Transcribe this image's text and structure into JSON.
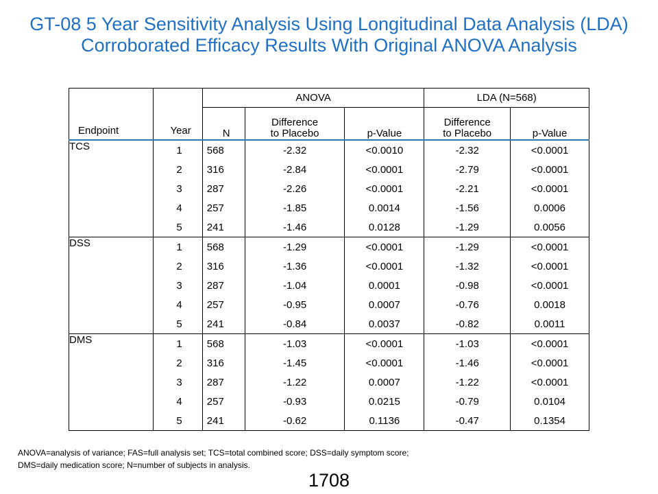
{
  "title": "GT-08 5 Year Sensitivity Analysis Using Longitudinal Data Analysis (LDA) Corroborated Efficacy Results With Original ANOVA Analysis",
  "headers": {
    "anova": "ANOVA",
    "lda": "LDA  (N=568)",
    "endpoint": "Endpoint",
    "year": "Year",
    "n": "N",
    "diff_line1": "Difference",
    "diff_line2": "to Placebo",
    "pvalue": "p-Value"
  },
  "groups": [
    {
      "endpoint": "TCS",
      "rows": [
        {
          "year": "1",
          "n": "568",
          "anova_diff": "-2.32",
          "anova_p": "<0.0010",
          "lda_diff": "-2.32",
          "lda_p": "<0.0001"
        },
        {
          "year": "2",
          "n": "316",
          "anova_diff": "-2.84",
          "anova_p": "<0.0001",
          "lda_diff": "-2.79",
          "lda_p": "<0.0001"
        },
        {
          "year": "3",
          "n": "287",
          "anova_diff": "-2.26",
          "anova_p": "<0.0001",
          "lda_diff": "-2.21",
          "lda_p": "<0.0001"
        },
        {
          "year": "4",
          "n": "257",
          "anova_diff": "-1.85",
          "anova_p": "0.0014",
          "lda_diff": "-1.56",
          "lda_p": "0.0006"
        },
        {
          "year": "5",
          "n": "241",
          "anova_diff": "-1.46",
          "anova_p": "0.0128",
          "lda_diff": "-1.29",
          "lda_p": "0.0056"
        }
      ]
    },
    {
      "endpoint": "DSS",
      "rows": [
        {
          "year": "1",
          "n": "568",
          "anova_diff": "-1.29",
          "anova_p": "<0.0001",
          "lda_diff": "-1.29",
          "lda_p": "<0.0001"
        },
        {
          "year": "2",
          "n": "316",
          "anova_diff": "-1.36",
          "anova_p": "<0.0001",
          "lda_diff": "-1.32",
          "lda_p": "<0.0001"
        },
        {
          "year": "3",
          "n": "287",
          "anova_diff": "-1.04",
          "anova_p": "0.0001",
          "lda_diff": "-0.98",
          "lda_p": "<0.0001"
        },
        {
          "year": "4",
          "n": "257",
          "anova_diff": "-0.95",
          "anova_p": "0.0007",
          "lda_diff": "-0.76",
          "lda_p": "0.0018"
        },
        {
          "year": "5",
          "n": "241",
          "anova_diff": "-0.84",
          "anova_p": "0.0037",
          "lda_diff": "-0.82",
          "lda_p": "0.0011"
        }
      ]
    },
    {
      "endpoint": "DMS",
      "rows": [
        {
          "year": "1",
          "n": "568",
          "anova_diff": "-1.03",
          "anova_p": "<0.0001",
          "lda_diff": "-1.03",
          "lda_p": "<0.0001"
        },
        {
          "year": "2",
          "n": "316",
          "anova_diff": "-1.45",
          "anova_p": "<0.0001",
          "lda_diff": "-1.46",
          "lda_p": "<0.0001"
        },
        {
          "year": "3",
          "n": "287",
          "anova_diff": "-1.22",
          "anova_p": "0.0007",
          "lda_diff": "-1.22",
          "lda_p": "<0.0001"
        },
        {
          "year": "4",
          "n": "257",
          "anova_diff": "-0.93",
          "anova_p": "0.0215",
          "lda_diff": "-0.79",
          "lda_p": "0.0104"
        },
        {
          "year": "5",
          "n": "241",
          "anova_diff": "-0.62",
          "anova_p": "0.1136",
          "lda_diff": "-0.47",
          "lda_p": "0.1354"
        }
      ]
    }
  ],
  "footnote_line1": "ANOVA=analysis of variance; FAS=full analysis set; TCS=total combined score; DSS=daily symptom score;",
  "footnote_line2": "DMS=daily medication score; N=number of subjects in analysis.",
  "page_number": "1708",
  "colors": {
    "title": "#1f6fc4",
    "header_rule": "#2e74b5"
  }
}
